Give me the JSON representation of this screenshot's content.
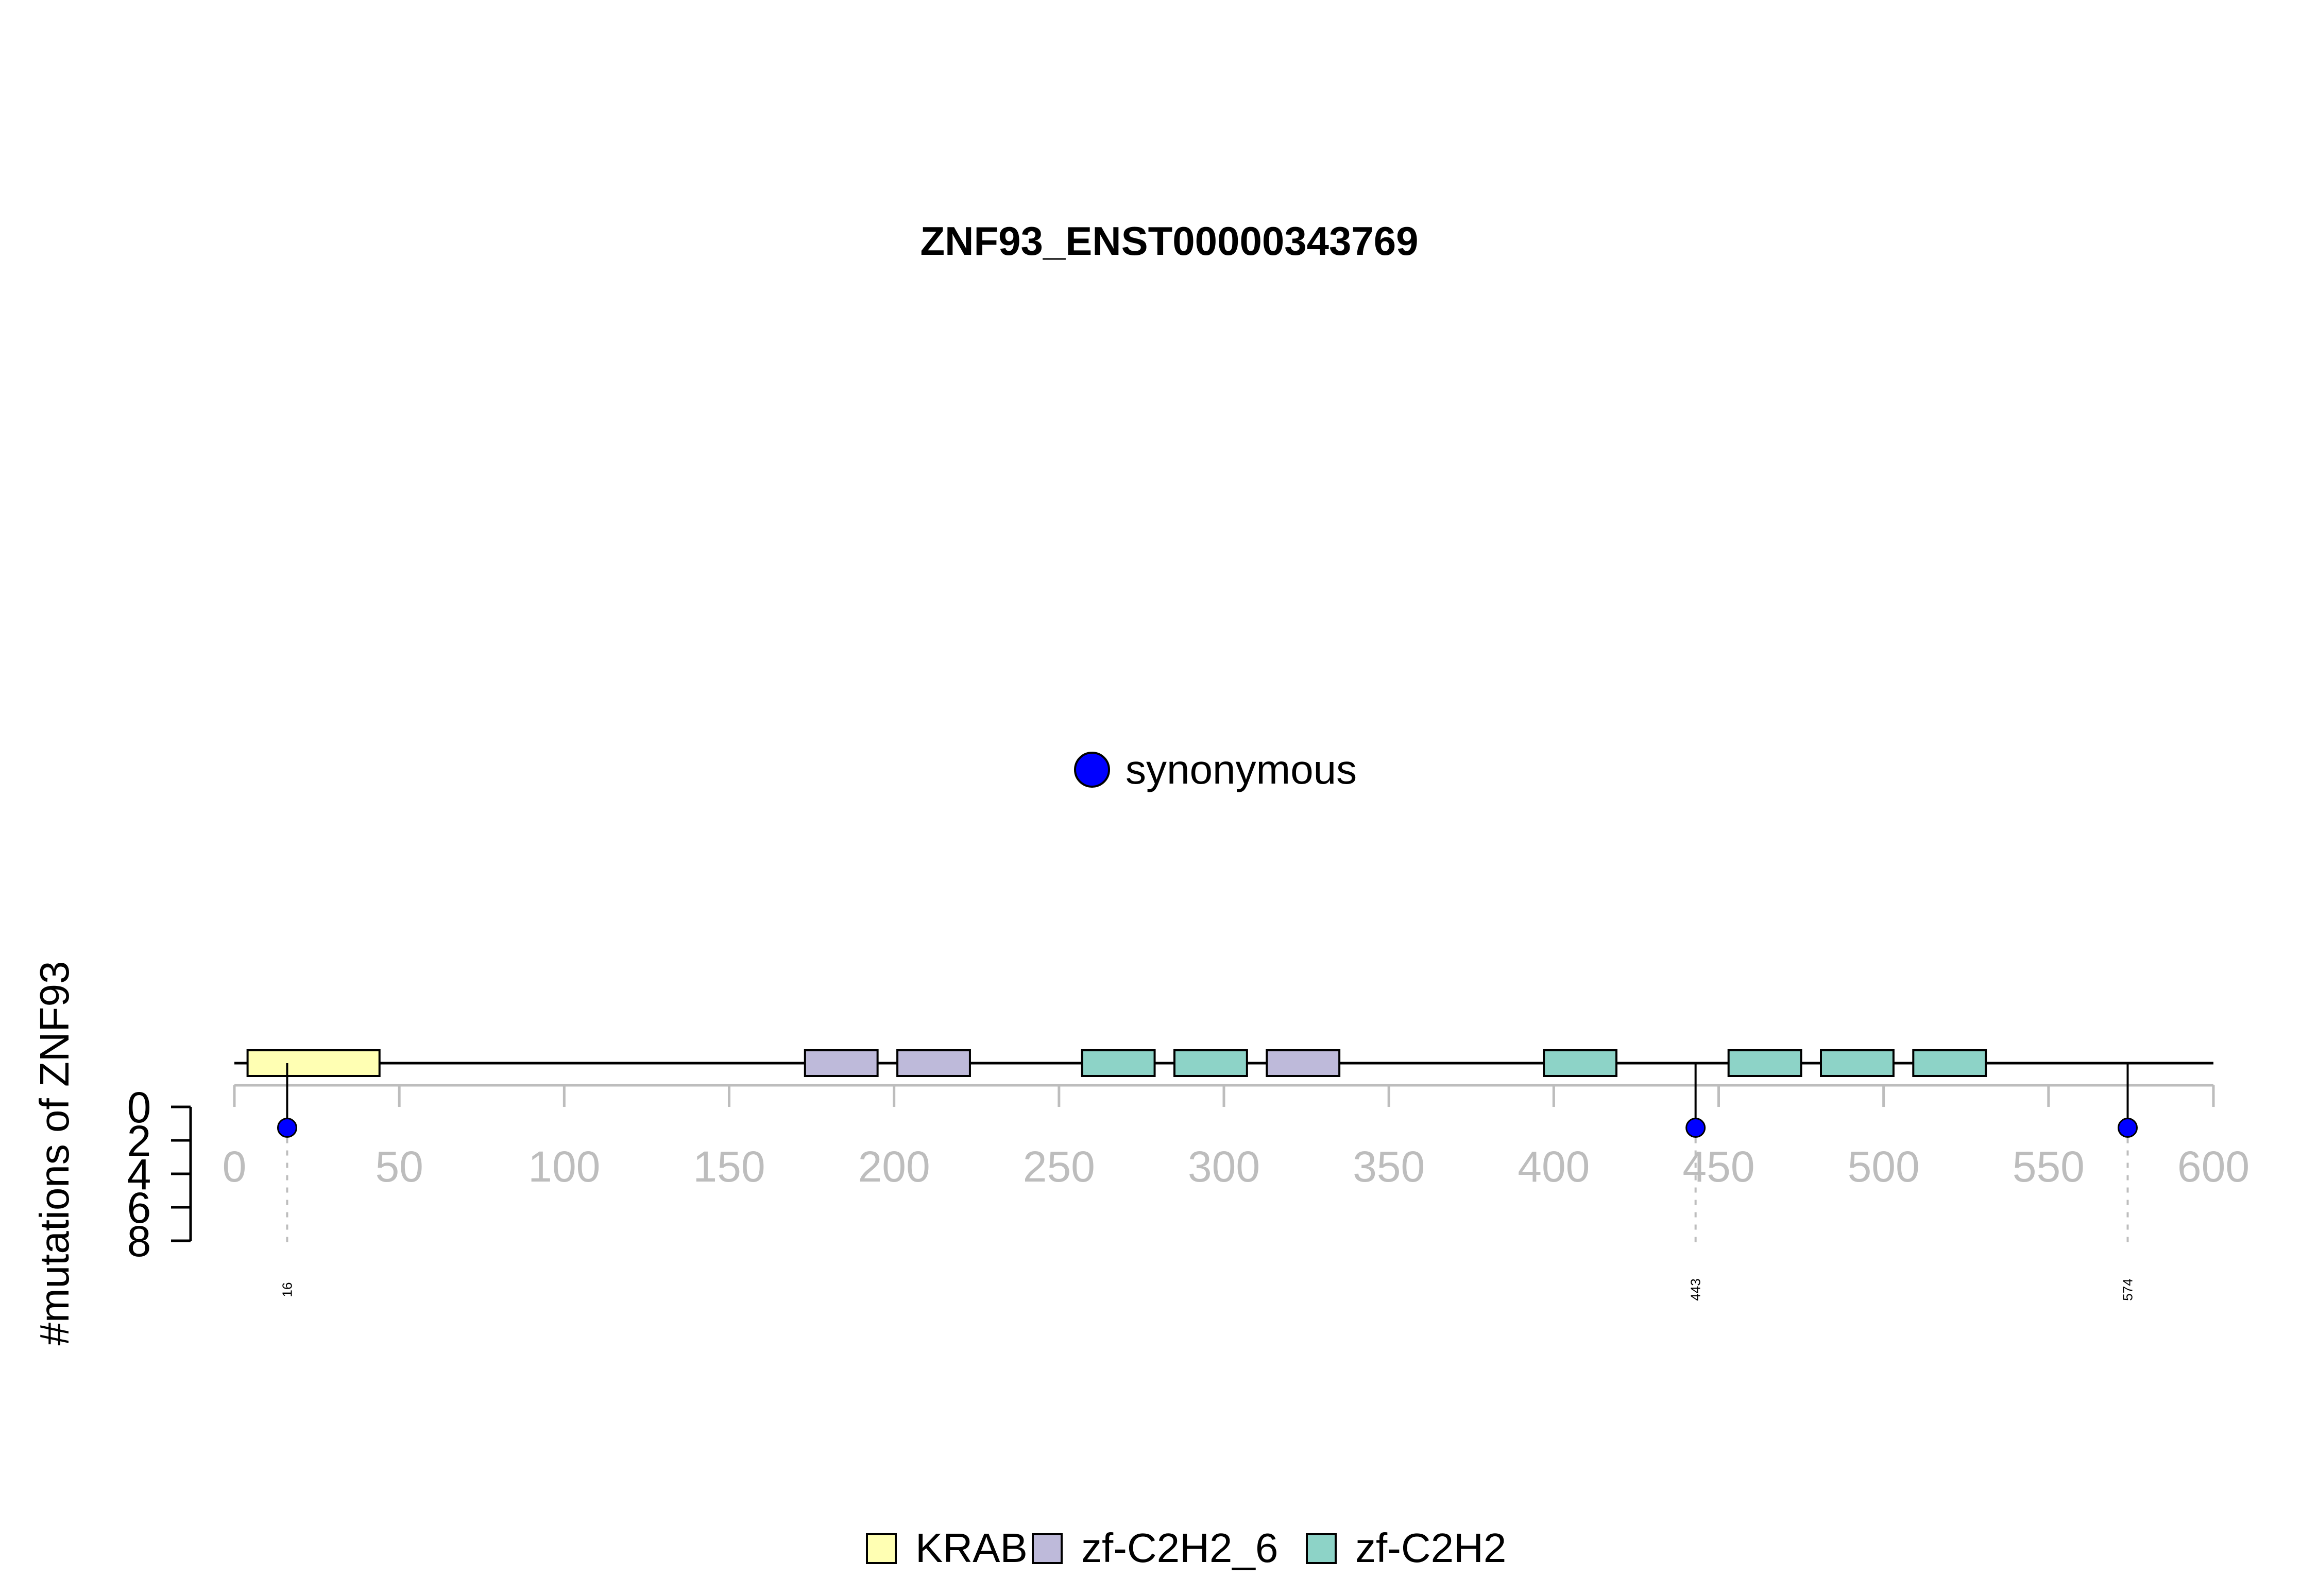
{
  "chart_data": {
    "type": "lollipop",
    "title": "ZNF93_ENST00000343769",
    "ylabel": "#mutations of ZNF93",
    "protein_length": 600,
    "xlim": [
      0,
      600
    ],
    "x_ticks": [
      0,
      50,
      100,
      150,
      200,
      250,
      300,
      350,
      400,
      450,
      500,
      550,
      600
    ],
    "ylim": [
      0,
      8
    ],
    "y_ticks": [
      0,
      2,
      4,
      6,
      8
    ],
    "domains": [
      {
        "name": "KRAB",
        "start": 4,
        "end": 44
      },
      {
        "name": "zf-C2H2_6",
        "start": 173,
        "end": 195
      },
      {
        "name": "zf-C2H2_6",
        "start": 201,
        "end": 223
      },
      {
        "name": "zf-C2H2",
        "start": 257,
        "end": 279
      },
      {
        "name": "zf-C2H2",
        "start": 285,
        "end": 307
      },
      {
        "name": "zf-C2H2_6",
        "start": 313,
        "end": 335
      },
      {
        "name": "zf-C2H2",
        "start": 397,
        "end": 419
      },
      {
        "name": "zf-C2H2",
        "start": 453,
        "end": 475
      },
      {
        "name": "zf-C2H2",
        "start": 481,
        "end": 503
      },
      {
        "name": "zf-C2H2",
        "start": 509,
        "end": 531
      }
    ],
    "mutations": [
      {
        "position": 16,
        "label": "16",
        "count": 1,
        "type": "synonymous"
      },
      {
        "position": 443,
        "label": "443",
        "count": 1,
        "type": "synonymous"
      },
      {
        "position": 574,
        "label": "574",
        "count": 1,
        "type": "synonymous"
      }
    ],
    "mutation_legend": [
      {
        "label": "synonymous",
        "color": "#0000ff"
      }
    ],
    "domain_legend": [
      {
        "label": "KRAB",
        "color": "#ffffb3"
      },
      {
        "label": "zf-C2H2_6",
        "color": "#bebada"
      },
      {
        "label": "zf-C2H2",
        "color": "#8dd3c7"
      }
    ],
    "legend_position": "bottom"
  }
}
